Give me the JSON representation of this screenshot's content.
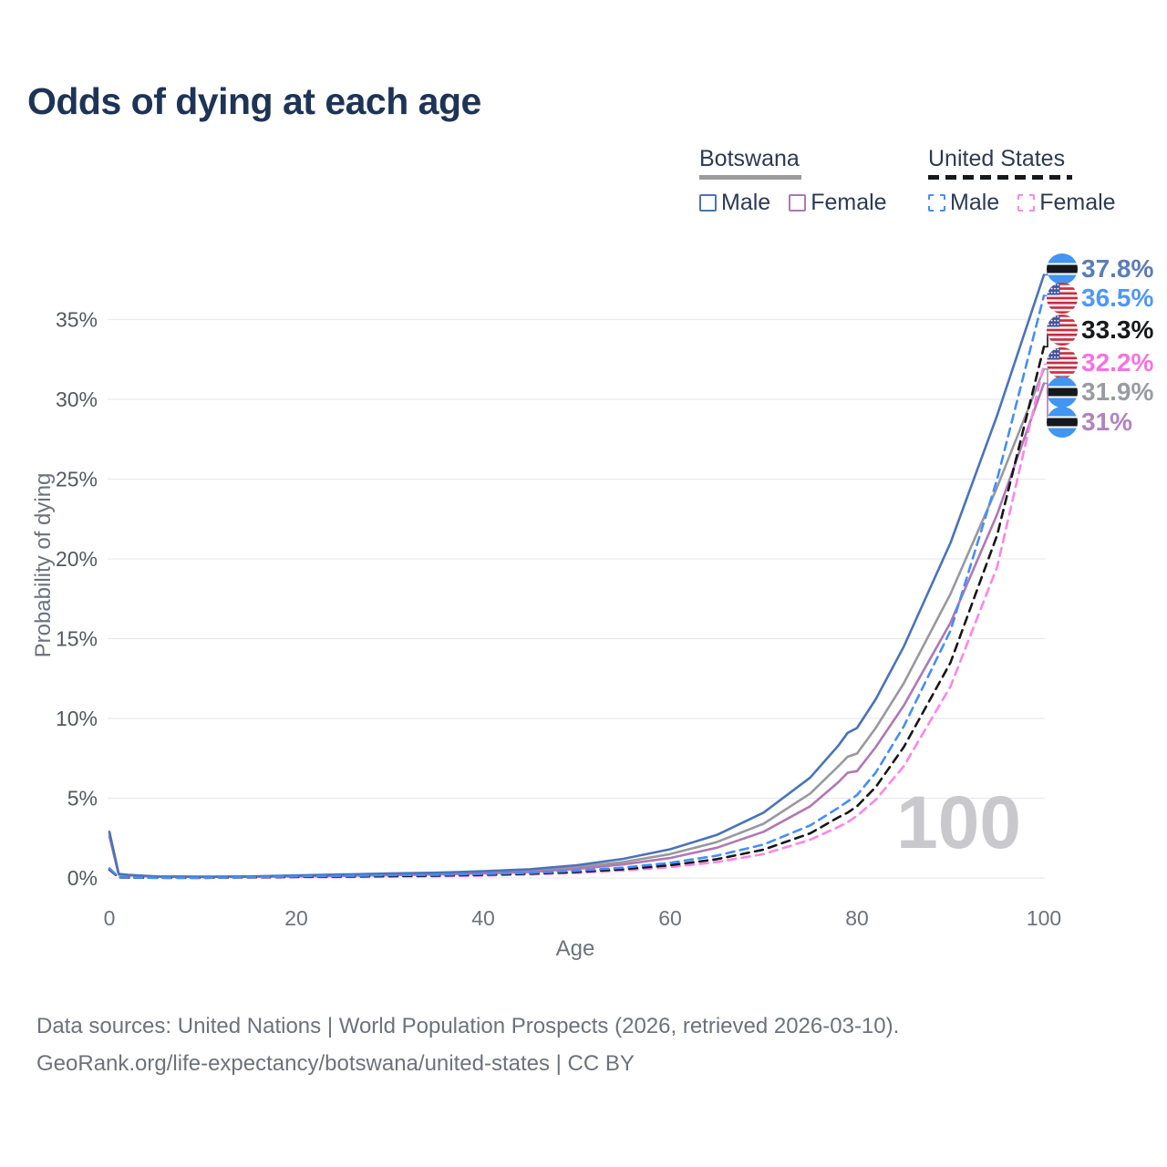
{
  "header": {
    "title": "Odds of dying at each age"
  },
  "legend": {
    "groups": [
      {
        "title": "Botswana",
        "line_style": "solid",
        "underline_color": "#9b9b9b",
        "items": [
          {
            "label": "Male",
            "color": "#4a73b8"
          },
          {
            "label": "Female",
            "color": "#b077b4"
          }
        ]
      },
      {
        "title": "United States",
        "line_style": "dashed",
        "underline_color": "#17181c",
        "items": [
          {
            "label": "Male",
            "color": "#448ef7"
          },
          {
            "label": "Female",
            "color": "#fb85e9"
          }
        ]
      }
    ]
  },
  "chart_data": {
    "type": "line",
    "title": "Odds of dying at each age",
    "xlabel": "Age",
    "ylabel": "Probability of dying",
    "x_ticks": [
      0,
      20,
      40,
      60,
      80,
      100
    ],
    "y_ticks": [
      "0%",
      "5%",
      "10%",
      "15%",
      "20%",
      "25%",
      "30%",
      "35%"
    ],
    "y_tick_values_pct": [
      0,
      5,
      10,
      15,
      20,
      25,
      30,
      35
    ],
    "xlim": [
      0,
      100
    ],
    "ylim_pct": [
      0,
      38.5
    ],
    "grid": "horizontal",
    "legend_position": "top-right",
    "hover_age_watermark": "100",
    "ages": [
      0,
      1,
      2,
      5,
      10,
      15,
      20,
      25,
      30,
      35,
      40,
      45,
      50,
      55,
      60,
      65,
      70,
      75,
      78,
      79,
      80,
      82,
      85,
      90,
      95,
      100
    ],
    "series": [
      {
        "name": "Botswana",
        "country": "botswana",
        "sex": "both",
        "flag": "botswana",
        "color": "#98999f",
        "dash": false,
        "end_label": "31.9%",
        "label_color": "#9a9ba2",
        "values_pct": [
          2.8,
          0.22,
          0.18,
          0.09,
          0.07,
          0.09,
          0.13,
          0.18,
          0.22,
          0.27,
          0.35,
          0.46,
          0.68,
          1.0,
          1.5,
          2.25,
          3.4,
          5.3,
          7.0,
          7.6,
          7.8,
          9.4,
          12.2,
          17.8,
          24.5,
          31.9
        ]
      },
      {
        "name": "Botswana Female",
        "country": "botswana",
        "sex": "female",
        "flag": "botswana",
        "color": "#b077b4",
        "dash": false,
        "end_label": "31%",
        "label_color": "#b183c0",
        "values_pct": [
          2.6,
          0.2,
          0.16,
          0.08,
          0.06,
          0.08,
          0.1,
          0.13,
          0.17,
          0.22,
          0.29,
          0.38,
          0.57,
          0.85,
          1.25,
          1.9,
          2.9,
          4.5,
          6.0,
          6.6,
          6.7,
          8.2,
          10.8,
          16.0,
          22.8,
          31.0
        ]
      },
      {
        "name": "Botswana Male",
        "country": "botswana",
        "sex": "male",
        "flag": "botswana",
        "color": "#4a73b8",
        "dash": false,
        "end_label": "37.8%",
        "label_color": "#5b7cb8",
        "values_pct": [
          2.9,
          0.25,
          0.2,
          0.1,
          0.08,
          0.1,
          0.16,
          0.22,
          0.28,
          0.33,
          0.42,
          0.55,
          0.8,
          1.2,
          1.8,
          2.7,
          4.1,
          6.3,
          8.3,
          9.1,
          9.4,
          11.2,
          14.5,
          21.0,
          29.0,
          37.8
        ]
      },
      {
        "name": "United States Female",
        "country": "united-states",
        "sex": "female",
        "flag": "usa",
        "color": "#fb85e9",
        "dash": true,
        "end_label": "32.2%",
        "label_color": "#f672e2",
        "values_pct": [
          0.5,
          0.03,
          0.02,
          0.012,
          0.01,
          0.03,
          0.05,
          0.06,
          0.08,
          0.11,
          0.15,
          0.22,
          0.32,
          0.47,
          0.68,
          1.0,
          1.5,
          2.4,
          3.2,
          3.5,
          3.9,
          4.9,
          7.0,
          12.0,
          19.5,
          32.2
        ]
      },
      {
        "name": "United States",
        "country": "united-states",
        "sex": "both",
        "flag": "usa",
        "color": "#17171b",
        "dash": true,
        "end_label": "33.3%",
        "label_color": "#17181a",
        "values_pct": [
          0.55,
          0.035,
          0.025,
          0.013,
          0.011,
          0.04,
          0.07,
          0.09,
          0.12,
          0.15,
          0.2,
          0.27,
          0.38,
          0.55,
          0.8,
          1.18,
          1.78,
          2.8,
          3.8,
          4.1,
          4.5,
          5.7,
          8.2,
          13.5,
          21.5,
          33.3
        ]
      },
      {
        "name": "United States Male",
        "country": "united-states",
        "sex": "male",
        "flag": "usa",
        "color": "#448ef7",
        "dash": true,
        "end_label": "36.5%",
        "label_color": "#4f97f3",
        "values_pct": [
          0.6,
          0.04,
          0.03,
          0.015,
          0.012,
          0.05,
          0.1,
          0.13,
          0.17,
          0.2,
          0.25,
          0.32,
          0.45,
          0.65,
          0.95,
          1.4,
          2.1,
          3.3,
          4.4,
          4.8,
          5.2,
          6.6,
          9.5,
          15.5,
          25.0,
          36.5
        ]
      }
    ]
  },
  "footer": {
    "line1": "Data sources: United Nations | World Population Prospects (2026, retrieved 2026-03-10).",
    "line2": "GeoRank.org/life-expectancy/botswana/united-states | CC BY"
  }
}
